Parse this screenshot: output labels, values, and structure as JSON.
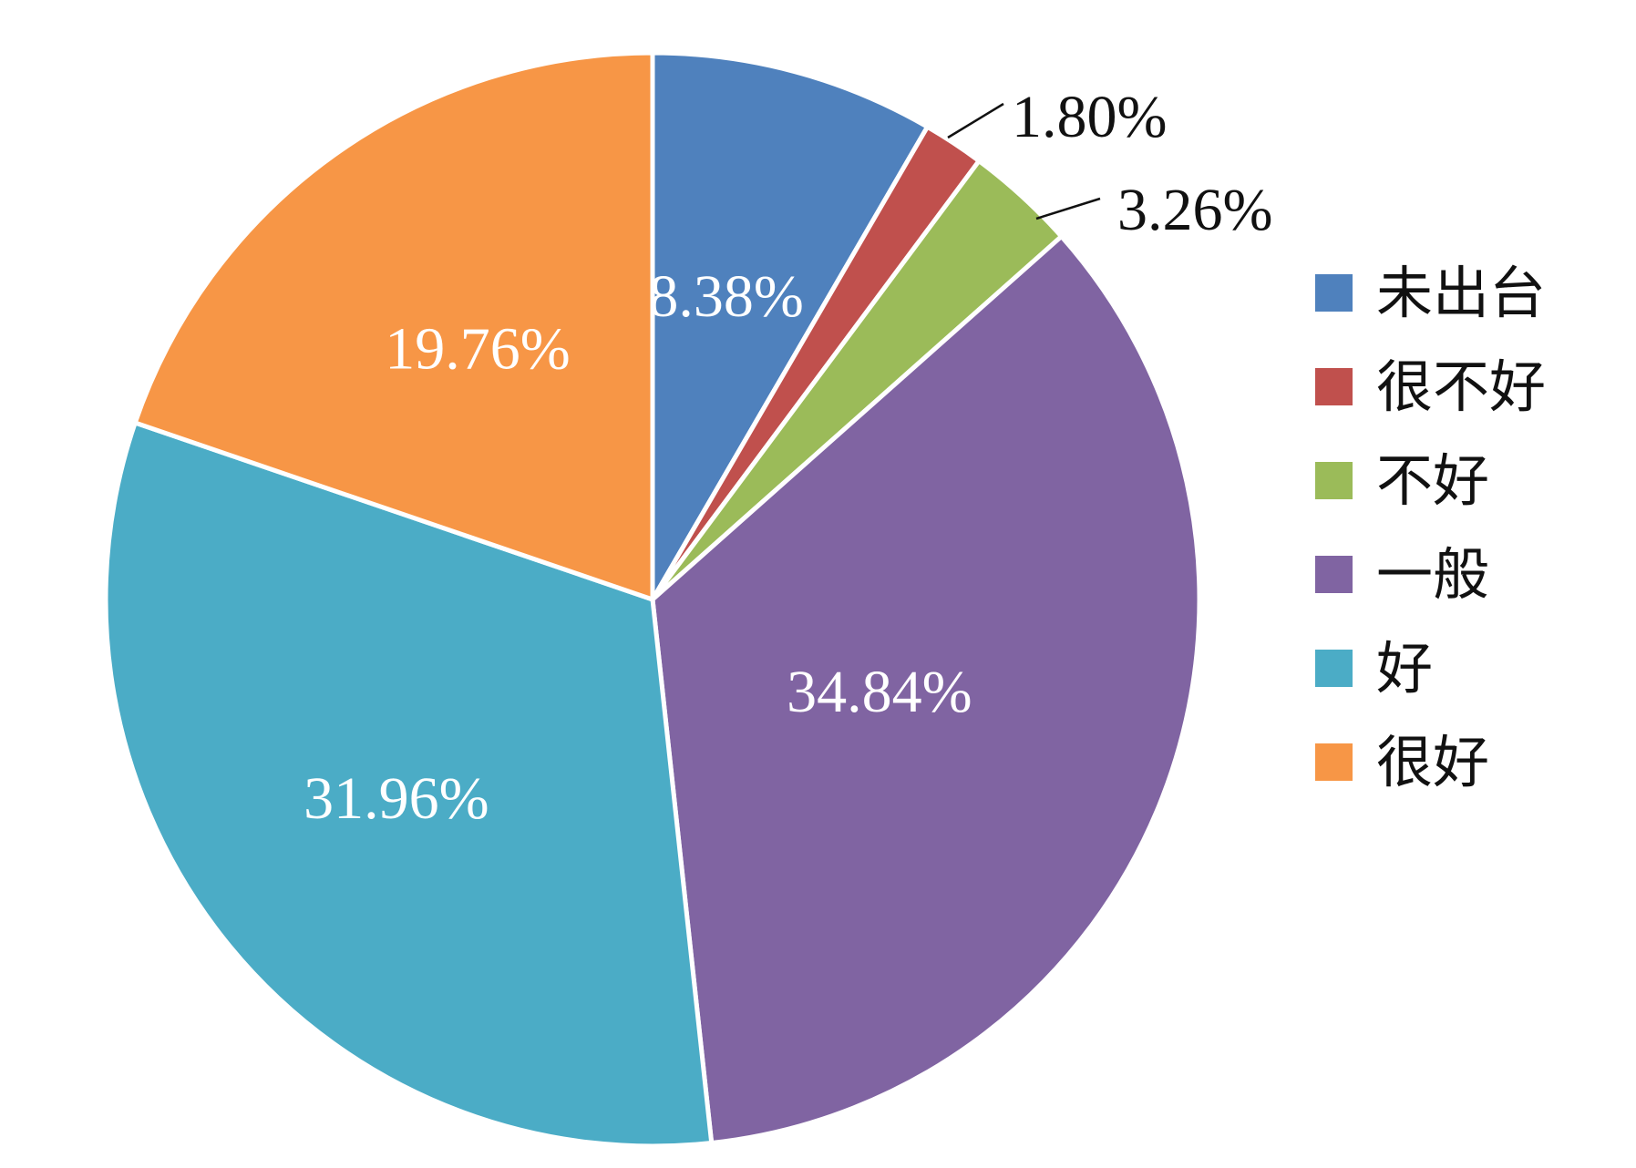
{
  "chart_data": {
    "type": "pie",
    "categories": [
      "未出台",
      "很不好",
      "不好",
      "一般",
      "好",
      "很好"
    ],
    "values": [
      8.38,
      1.8,
      3.26,
      34.84,
      31.96,
      19.76
    ],
    "labels": [
      "8.38%",
      "1.80%",
      "3.26%",
      "34.84%",
      "31.96%",
      "19.76%"
    ],
    "colors": [
      "#4f81bd",
      "#c0504d",
      "#9bbb59",
      "#8064a2",
      "#4bacc6",
      "#f79646"
    ],
    "legend_position": "right",
    "start_angle": "12 o'clock",
    "direction": "clockwise"
  }
}
